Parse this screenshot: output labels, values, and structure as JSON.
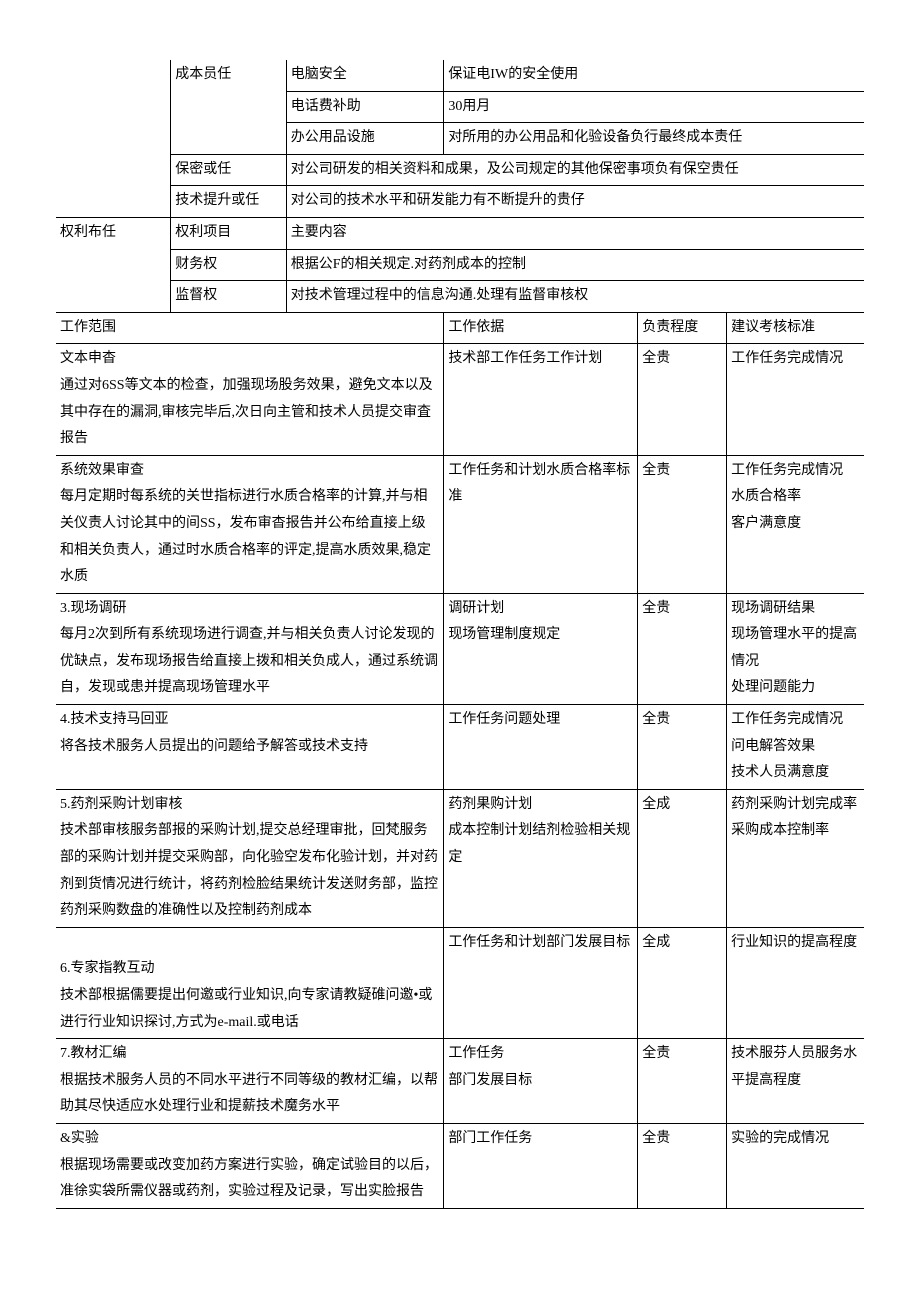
{
  "top": {
    "r1c2": "成本员任",
    "r1c3": "电脑安全",
    "r1c4": "保证电IW的安全使用",
    "r2c3": "电话费补助",
    "r2c4": "30用月",
    "r3c3": "办公用品设施",
    "r3c4": "对所用的办公用品和化验设备负行最终成本责任",
    "r4c2": "保密或任",
    "r4c3": "对公司研发的相关资料和成果，及公司规定的其他保密事项负有保空贵任",
    "r5c2": "技术提升或任",
    "r5c3": "对公司的技术水平和研发能力有不断提升的贵仔",
    "r6c1": "权利布任",
    "r6c2": "权利项目",
    "r6c3": "主要内容",
    "r7c2": "财务权",
    "r7c3": "根据公F的相关规定.对药剂成本的控制",
    "r8c2": "监督权",
    "r8c3": "对技术管理过程中的信息沟通.处理有监督审核权"
  },
  "hdr": {
    "c1": "工作范围",
    "c2": "工作依据",
    "c3": "负责程度",
    "c4": "建议考核标准"
  },
  "rows": [
    {
      "scope": "文本申杳\n通过对6SS等文本的检查，加强现场股务效果，避免文本以及其中存在的漏洞,审核完毕后,次日向主管和技术人员提交审査报告",
      "basis": "技术部工作任务工作计划",
      "level": "全贵",
      "metric": "工作任务完成情况"
    },
    {
      "scope": "系统效果审查\n每月定期时每系统的关世指标进行水质合格率的计算,并与相关仪责人讨论其中的间SS，发布审杳报告并公布给直接上级和相关负责人，通过时水质合格率的评定,提高水质效果,稳定水质",
      "basis": "工作任务和计划水质合格率标准",
      "level": "全责",
      "metric": "工作任务完成情况\n水质合格率\n客户满意度"
    },
    {
      "scope": "3.现场调研\n每月2次到所有系统现场进行调查,并与相关负责人讨论发现的优缺点，发布现场报告给直接上拨和相关负成人，通过系统调自，发现或患并提高现场管理水平",
      "basis": "调研计划\n现场管理制度规定",
      "level": "全贵",
      "metric": "现场调研结果\n现场管理水平的提高情况\n处理问题能力"
    },
    {
      "scope": "4.技术支持马回亚\n将各技术服务人员提出的问题给予解答或技术支持",
      "basis": "工作任务问题处理",
      "level": "全贵",
      "metric": "工作任务完成情况\n问电解答效果\n技术人员满意度"
    },
    {
      "scope": "5.药剂采购计划审核\n技术部审核服务部报的采购计划,提交总经理审批，回梵服务部的采购计划并提交采购部，向化验空发布化验计划，并对药剂到货情况进行统计，将药剂检脸结果统计发送财务部，监控药剂采购数盘的准确性以及控制药剂成本",
      "basis": "药剂果购计划\n成本控制计划结剂检验相关规定",
      "level": "全成",
      "metric": "药剂采购计划完成率采购成本控制率"
    },
    {
      "scope": "\n6.专家指教互动\n技术部根据儒要提出何邀或行业知识,向专家请教疑碓问邀•或进行行业知识探讨,方式为e-mail.或电话",
      "basis": "工作任务和计划部门发展目标",
      "level": "全成",
      "metric": "行业知识的提高程度"
    },
    {
      "scope": "7.教材汇编\n根据技术服务人员的不同水平进行不同等级的教材汇编，以帮助其尽快适应水处理行业和提薪技术魔务水平",
      "basis": "工作任务\n部门发展目标",
      "level": "全责",
      "metric": "技术服芬人员服务水平提高程度"
    },
    {
      "scope": "&实验\n根据现场需要或改变加药方案进行实验，确定试验目的以后，准徐实袋所需仪器或药剂，实验过程及记录，写出实脸报告",
      "basis": "部门工作任务",
      "level": "全贵",
      "metric": "实验的完成情况"
    }
  ]
}
